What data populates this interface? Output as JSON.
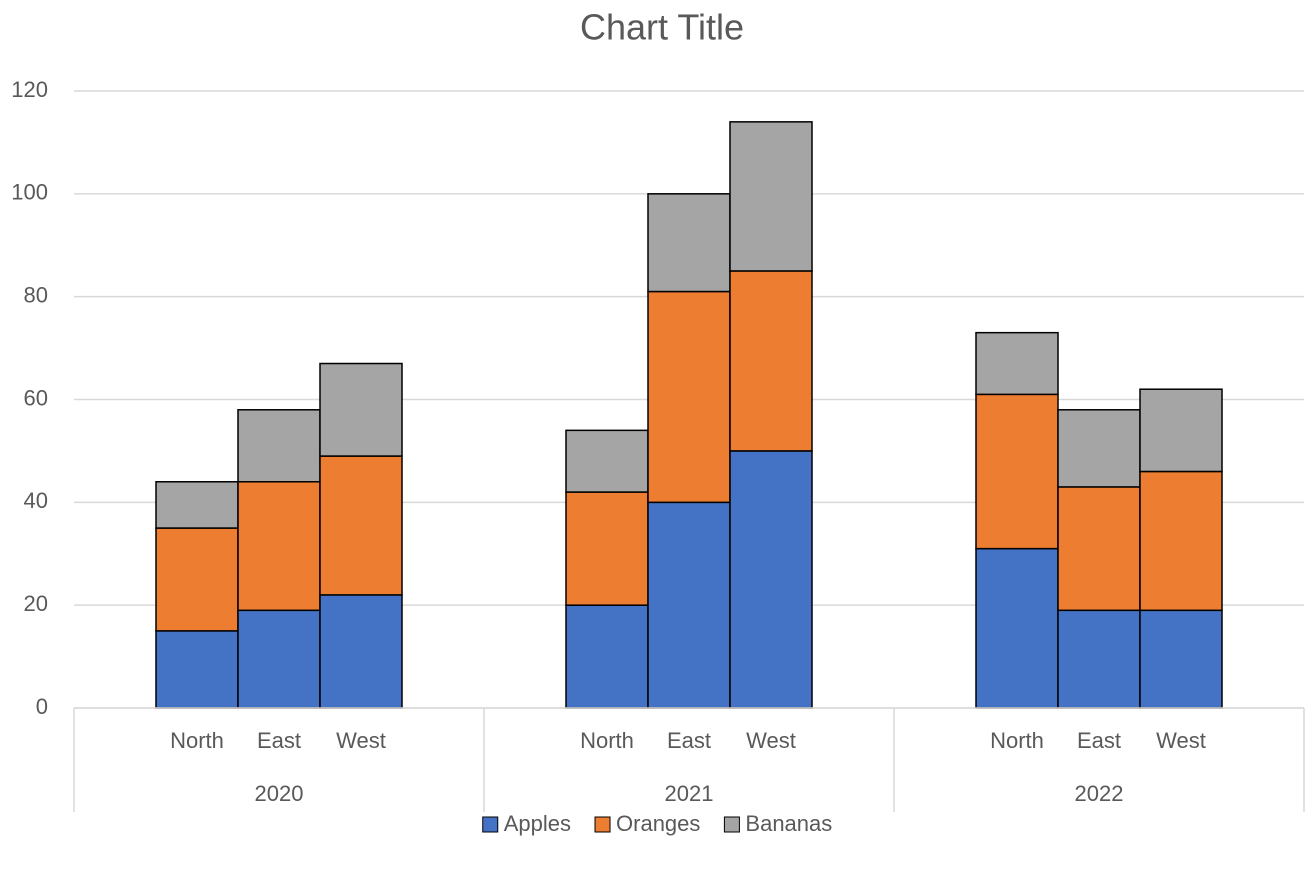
{
  "chart_data": {
    "type": "stacked_bar",
    "title": "Chart Title",
    "category_groups": [
      {
        "name": "2020",
        "categories": [
          "North",
          "East",
          "West"
        ]
      },
      {
        "name": "2021",
        "categories": [
          "North",
          "East",
          "West"
        ]
      },
      {
        "name": "2022",
        "categories": [
          "North",
          "East",
          "West"
        ]
      }
    ],
    "series": [
      {
        "name": "Apples",
        "color": "#4472c4",
        "values": [
          15,
          19,
          22,
          20,
          40,
          50,
          31,
          19,
          19
        ]
      },
      {
        "name": "Oranges",
        "color": "#ed7d31",
        "values": [
          20,
          25,
          27,
          22,
          41,
          35,
          30,
          24,
          27
        ]
      },
      {
        "name": "Bananas",
        "color": "#a5a5a5",
        "values": [
          9,
          14,
          18,
          12,
          19,
          29,
          12,
          15,
          16
        ]
      }
    ],
    "ylim": [
      0,
      120
    ],
    "yticks": [
      0,
      20,
      40,
      60,
      80,
      100,
      120
    ],
    "grid": true,
    "legend": "bottom"
  }
}
